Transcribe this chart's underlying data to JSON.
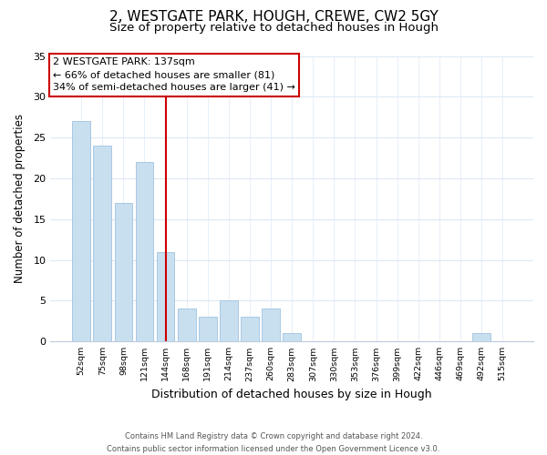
{
  "title1": "2, WESTGATE PARK, HOUGH, CREWE, CW2 5GY",
  "title2": "Size of property relative to detached houses in Hough",
  "xlabel": "Distribution of detached houses by size in Hough",
  "ylabel": "Number of detached properties",
  "bin_labels": [
    "52sqm",
    "75sqm",
    "98sqm",
    "121sqm",
    "144sqm",
    "168sqm",
    "191sqm",
    "214sqm",
    "237sqm",
    "260sqm",
    "283sqm",
    "307sqm",
    "330sqm",
    "353sqm",
    "376sqm",
    "399sqm",
    "422sqm",
    "446sqm",
    "469sqm",
    "492sqm",
    "515sqm"
  ],
  "bar_values": [
    27,
    24,
    17,
    22,
    11,
    4,
    3,
    5,
    3,
    4,
    1,
    0,
    0,
    0,
    0,
    0,
    0,
    0,
    0,
    1,
    0
  ],
  "bar_color": "#c8dff0",
  "bar_edge_color": "#a0c4de",
  "vline_color": "#cc0000",
  "annotation_title": "2 WESTGATE PARK: 137sqm",
  "annotation_line1": "← 66% of detached houses are smaller (81)",
  "annotation_line2": "34% of semi-detached houses are larger (41) →",
  "annotation_box_color": "#ffffff",
  "annotation_box_edge": "#cc0000",
  "ylim": [
    0,
    35
  ],
  "yticks": [
    0,
    5,
    10,
    15,
    20,
    25,
    30,
    35
  ],
  "footnote1": "Contains HM Land Registry data © Crown copyright and database right 2024.",
  "footnote2": "Contains public sector information licensed under the Open Government Licence v3.0.",
  "bg_color": "#ffffff",
  "grid_color": "#dce9f5",
  "title1_fontsize": 11,
  "title2_fontsize": 9.5
}
